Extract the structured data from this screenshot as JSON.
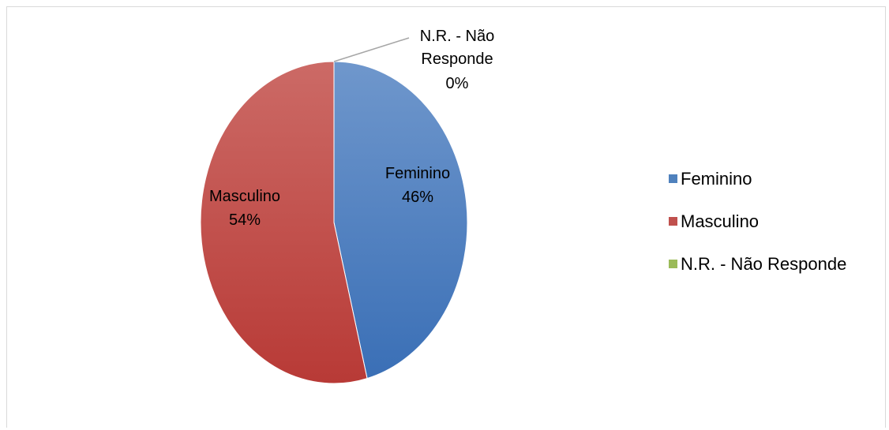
{
  "chart_data": {
    "type": "pie",
    "title": "",
    "slices": [
      {
        "name": "Feminino",
        "value": 46,
        "label_name": "Feminino",
        "label_value": "46%",
        "color": "#4F81BD"
      },
      {
        "name": "Masculino",
        "value": 54,
        "label_name": "Masculino",
        "label_value": "54%",
        "color": "#C0504D"
      },
      {
        "name": "N.R. - Não Responde",
        "value": 0,
        "label_name_lines": [
          "N.R. - Não",
          "Responde"
        ],
        "label_value": "0%",
        "color": "#9BBB59"
      }
    ],
    "legend": {
      "position": "right",
      "items": [
        {
          "label": "Feminino",
          "color": "#4F81BD"
        },
        {
          "label": "Masculino",
          "color": "#C0504D"
        },
        {
          "label": "N.R. - Não Responde",
          "color": "#9BBB59"
        }
      ]
    }
  }
}
